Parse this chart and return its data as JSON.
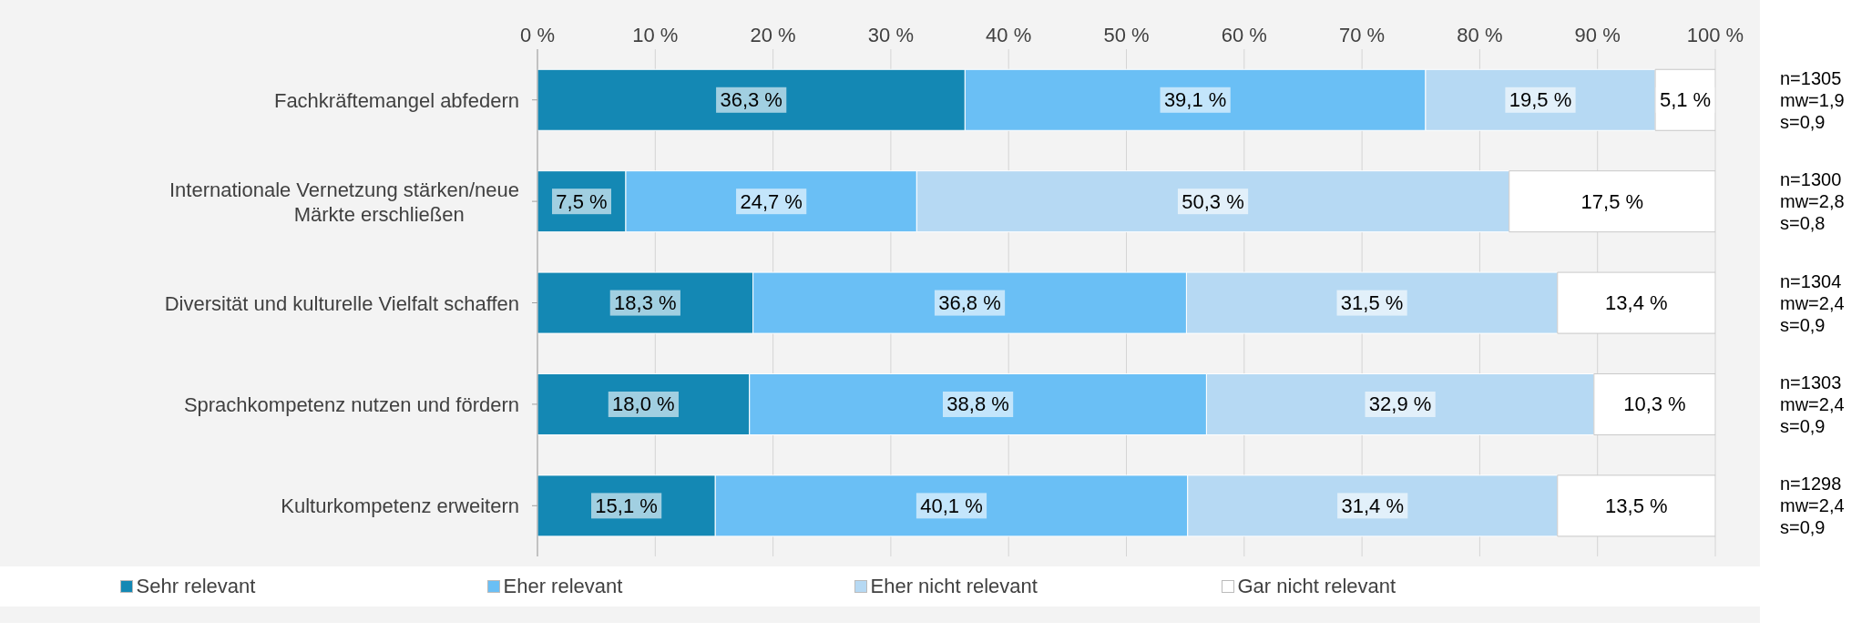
{
  "chart_data": {
    "type": "bar",
    "orientation": "horizontal",
    "stacked": true,
    "categories": [
      "Fachkräftemangel abfedern",
      "Internationale Vernetzung stärken/neue Märkte erschließen",
      "Diversität und kulturelle Vielfalt schaffen",
      "Sprachkompetenz nutzen und fördern",
      "Kulturkompetenz erweitern"
    ],
    "series": [
      {
        "name": "Sehr relevant",
        "color": "#1488b4",
        "values": [
          36.3,
          7.5,
          18.3,
          18.0,
          15.1
        ],
        "value_labels": [
          "36,3 %",
          "7,5 %",
          "18,3 %",
          "18,0 %",
          "15,1 %"
        ]
      },
      {
        "name": "Eher relevant",
        "color": "#6abff5",
        "values": [
          39.1,
          24.7,
          36.8,
          38.8,
          40.1
        ],
        "value_labels": [
          "39,1 %",
          "24,7 %",
          "36,8 %",
          "38,8 %",
          "40,1 %"
        ]
      },
      {
        "name": "Eher nicht relevant",
        "color": "#b6d9f3",
        "values": [
          19.5,
          50.3,
          31.5,
          32.9,
          31.4
        ],
        "value_labels": [
          "19,5 %",
          "50,3 %",
          "31,5 %",
          "32,9 %",
          "31,4 %"
        ]
      },
      {
        "name": "Gar nicht relevant",
        "color": "#ffffff",
        "values": [
          5.1,
          17.5,
          13.4,
          10.3,
          13.5
        ],
        "value_labels": [
          "5,1 %",
          "17,5 %",
          "13,4 %",
          "10,3 %",
          "13,5 %"
        ]
      }
    ],
    "xlim": [
      0,
      100
    ],
    "xticks": [
      {
        "value": 0,
        "label": "0 %"
      },
      {
        "value": 10,
        "label": "10 %"
      },
      {
        "value": 20,
        "label": "20 %"
      },
      {
        "value": 30,
        "label": "30 %"
      },
      {
        "value": 40,
        "label": "40 %"
      },
      {
        "value": 50,
        "label": "50 %"
      },
      {
        "value": 60,
        "label": "60 %"
      },
      {
        "value": 70,
        "label": "70 %"
      },
      {
        "value": 80,
        "label": "80 %"
      },
      {
        "value": 90,
        "label": "90 %"
      },
      {
        "value": 100,
        "label": "100 %"
      }
    ],
    "grid": "x",
    "legend": "bottom",
    "annotations": [
      "n=1305\nmw=1,9\ns=0,9",
      "n=1300\nmw=2,8\ns=0,8",
      "n=1304\nmw=2,4\ns=0,9",
      "n=1303\nmw=2,4\ns=0,9",
      "n=1298\nmw=2,4\ns=0,9"
    ]
  }
}
